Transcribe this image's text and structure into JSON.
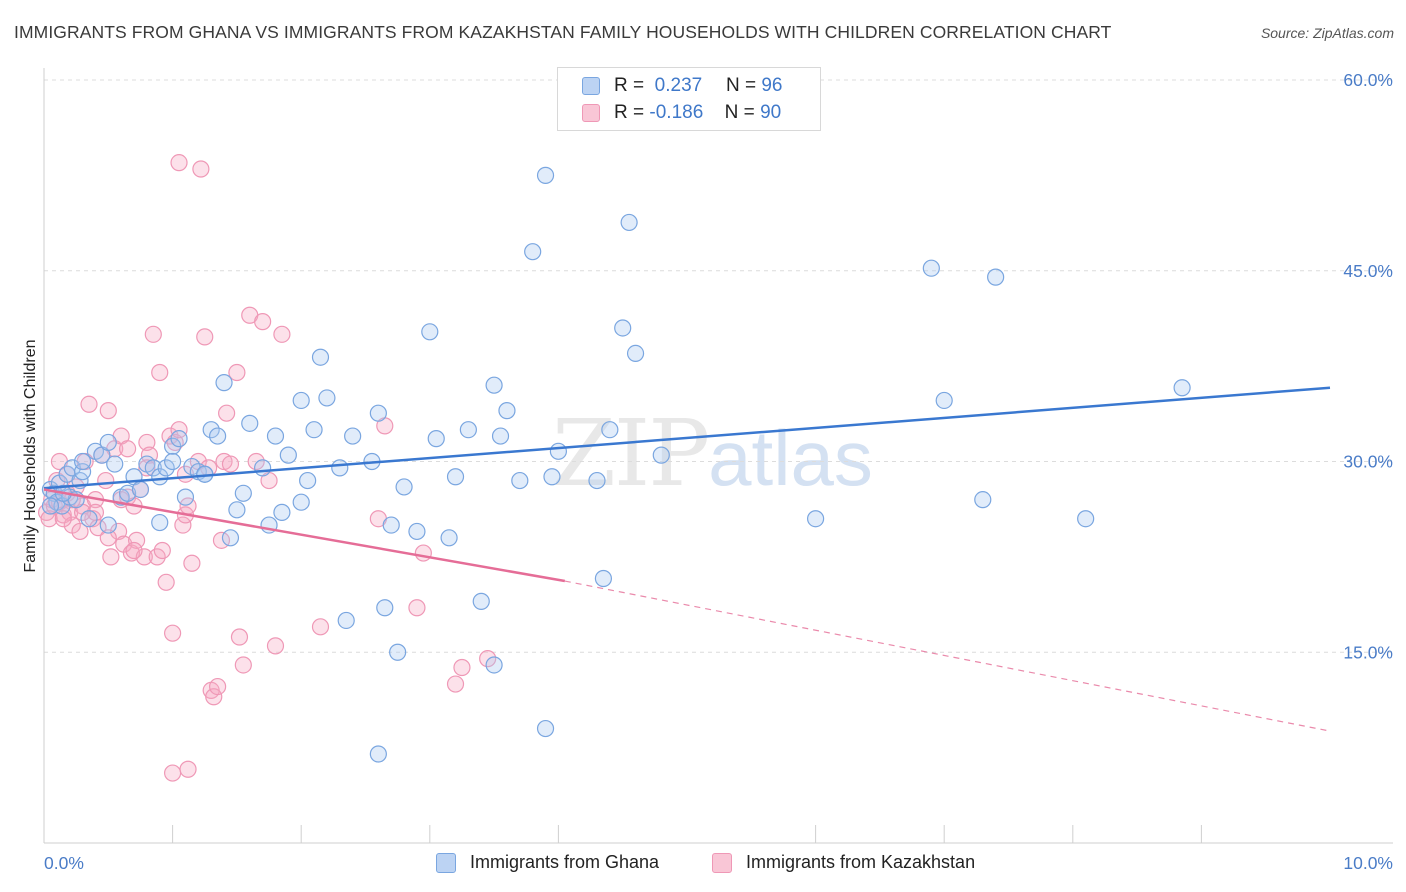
{
  "title": "IMMIGRANTS FROM GHANA VS IMMIGRANTS FROM KAZAKHSTAN FAMILY HOUSEHOLDS WITH CHILDREN CORRELATION CHART",
  "source": "Source: ZipAtlas.com",
  "watermark": {
    "zip": "ZIP",
    "atlas": "atlas"
  },
  "legend": {
    "rows": [
      {
        "r_label": "R =",
        "r_value": "0.237",
        "n_label": "N =",
        "n_value": "96"
      },
      {
        "r_label": "R =",
        "r_value": "-0.186",
        "n_label": "N =",
        "n_value": "90"
      }
    ]
  },
  "bottom_legend": {
    "ghana": "Immigrants from Ghana",
    "kazakhstan": "Immigrants from Kazakhstan"
  },
  "chart_data": {
    "type": "scatter",
    "title": "IMMIGRANTS FROM GHANA VS IMMIGRANTS FROM KAZAKHSTAN FAMILY HOUSEHOLDS WITH CHILDREN CORRELATION CHART",
    "xlabel": "",
    "ylabel": "Family Households with Children",
    "xlim": [
      0,
      10
    ],
    "ylim": [
      0,
      60
    ],
    "x_tick_labels": [
      "0.0%",
      "10.0%"
    ],
    "y_tick_labels": [
      "15.0%",
      "30.0%",
      "45.0%",
      "60.0%"
    ],
    "y_ticks": [
      15,
      30,
      45,
      60
    ],
    "grid": true,
    "legend_position": "top-center",
    "colors": {
      "ghana": "#6fa0e0",
      "ghana_line": "#3a78d0",
      "kazakhstan": "#f08fb0",
      "kazakhstan_line": "#e56d97"
    },
    "series": [
      {
        "name": "Immigrants from Ghana",
        "R": 0.237,
        "N": 96,
        "trend": {
          "x": [
            0.0,
            10.0
          ],
          "y": [
            27.9,
            35.8
          ]
        },
        "points": [
          [
            0.05,
            27.8
          ],
          [
            0.08,
            27.5
          ],
          [
            0.1,
            26.8
          ],
          [
            0.12,
            28.3
          ],
          [
            0.14,
            26.5
          ],
          [
            0.18,
            29.0
          ],
          [
            0.2,
            27.2
          ],
          [
            0.22,
            29.5
          ],
          [
            0.25,
            27.0
          ],
          [
            0.28,
            28.5
          ],
          [
            0.3,
            29.2
          ],
          [
            0.35,
            25.5
          ],
          [
            0.4,
            30.8
          ],
          [
            0.45,
            30.5
          ],
          [
            0.5,
            31.5
          ],
          [
            0.55,
            29.8
          ],
          [
            0.6,
            27.2
          ],
          [
            0.65,
            27.5
          ],
          [
            0.7,
            28.8
          ],
          [
            0.75,
            27.8
          ],
          [
            0.8,
            29.8
          ],
          [
            0.85,
            29.5
          ],
          [
            0.9,
            28.8
          ],
          [
            0.95,
            29.5
          ],
          [
            1.0,
            31.2
          ],
          [
            1.05,
            31.8
          ],
          [
            1.1,
            27.2
          ],
          [
            1.15,
            29.6
          ],
          [
            1.2,
            29.2
          ],
          [
            1.25,
            29.0
          ],
          [
            1.3,
            32.5
          ],
          [
            1.35,
            32.0
          ],
          [
            1.4,
            36.2
          ],
          [
            1.45,
            24.0
          ],
          [
            1.5,
            26.2
          ],
          [
            1.55,
            27.5
          ],
          [
            1.6,
            33.0
          ],
          [
            1.7,
            29.5
          ],
          [
            1.75,
            25.0
          ],
          [
            1.8,
            32.0
          ],
          [
            1.85,
            26.0
          ],
          [
            1.9,
            30.5
          ],
          [
            2.0,
            34.8
          ],
          [
            2.05,
            28.5
          ],
          [
            2.1,
            32.5
          ],
          [
            2.15,
            38.2
          ],
          [
            2.2,
            35.0
          ],
          [
            2.3,
            29.5
          ],
          [
            2.35,
            17.5
          ],
          [
            2.4,
            32.0
          ],
          [
            2.55,
            30.0
          ],
          [
            2.6,
            33.8
          ],
          [
            2.65,
            18.5
          ],
          [
            2.7,
            25.0
          ],
          [
            2.8,
            28.0
          ],
          [
            2.9,
            24.5
          ],
          [
            3.0,
            40.2
          ],
          [
            3.05,
            31.8
          ],
          [
            3.15,
            24.0
          ],
          [
            3.2,
            28.8
          ],
          [
            3.3,
            32.5
          ],
          [
            3.4,
            19.0
          ],
          [
            3.5,
            36.0
          ],
          [
            3.55,
            32.0
          ],
          [
            3.6,
            34.0
          ],
          [
            3.7,
            28.5
          ],
          [
            3.8,
            46.5
          ],
          [
            3.9,
            52.5
          ],
          [
            3.95,
            28.8
          ],
          [
            4.0,
            30.8
          ],
          [
            4.3,
            28.5
          ],
          [
            4.35,
            20.8
          ],
          [
            4.4,
            32.5
          ],
          [
            4.5,
            40.5
          ],
          [
            4.55,
            48.8
          ],
          [
            4.6,
            38.5
          ],
          [
            4.8,
            30.5
          ],
          [
            6.0,
            25.5
          ],
          [
            6.9,
            45.2
          ],
          [
            7.0,
            34.8
          ],
          [
            7.3,
            27.0
          ],
          [
            7.4,
            44.5
          ],
          [
            8.1,
            25.5
          ],
          [
            8.85,
            35.8
          ],
          [
            0.3,
            30.0
          ],
          [
            0.5,
            25.0
          ],
          [
            0.9,
            25.2
          ],
          [
            1.25,
            29.0
          ],
          [
            2.0,
            26.8
          ],
          [
            2.75,
            15.0
          ],
          [
            2.6,
            7.0
          ],
          [
            3.5,
            14.0
          ],
          [
            3.9,
            9.0
          ],
          [
            0.15,
            27.5
          ],
          [
            0.05,
            26.5
          ],
          [
            1.0,
            30.0
          ]
        ]
      },
      {
        "name": "Immigrants from Kazakhstan",
        "R": -0.186,
        "N": 90,
        "trend": {
          "x": [
            0.0,
            4.05
          ],
          "y": [
            27.8,
            20.6
          ]
        },
        "trend_extended": {
          "x": [
            4.05,
            10.0
          ],
          "y": [
            20.6,
            8.8
          ]
        },
        "points": [
          [
            0.02,
            26.0
          ],
          [
            0.04,
            25.5
          ],
          [
            0.06,
            27.0
          ],
          [
            0.08,
            26.5
          ],
          [
            0.1,
            28.5
          ],
          [
            0.12,
            26.8
          ],
          [
            0.15,
            25.8
          ],
          [
            0.18,
            27.5
          ],
          [
            0.2,
            26.0
          ],
          [
            0.22,
            25.0
          ],
          [
            0.25,
            28.0
          ],
          [
            0.28,
            24.5
          ],
          [
            0.3,
            26.5
          ],
          [
            0.32,
            30.0
          ],
          [
            0.35,
            34.5
          ],
          [
            0.38,
            25.5
          ],
          [
            0.4,
            27.0
          ],
          [
            0.42,
            24.8
          ],
          [
            0.45,
            30.5
          ],
          [
            0.48,
            28.5
          ],
          [
            0.5,
            34.0
          ],
          [
            0.52,
            22.5
          ],
          [
            0.55,
            31.0
          ],
          [
            0.58,
            24.5
          ],
          [
            0.6,
            32.0
          ],
          [
            0.62,
            23.5
          ],
          [
            0.65,
            27.2
          ],
          [
            0.68,
            22.8
          ],
          [
            0.7,
            26.5
          ],
          [
            0.72,
            23.8
          ],
          [
            0.75,
            27.8
          ],
          [
            0.78,
            22.5
          ],
          [
            0.8,
            31.5
          ],
          [
            0.82,
            30.5
          ],
          [
            0.85,
            40.0
          ],
          [
            0.88,
            22.5
          ],
          [
            0.9,
            37.0
          ],
          [
            0.92,
            23.0
          ],
          [
            0.95,
            20.5
          ],
          [
            0.98,
            32.0
          ],
          [
            1.0,
            16.5
          ],
          [
            1.02,
            31.5
          ],
          [
            1.05,
            32.5
          ],
          [
            1.08,
            25.0
          ],
          [
            1.1,
            25.8
          ],
          [
            1.05,
            53.5
          ],
          [
            1.1,
            29.0
          ],
          [
            1.12,
            26.5
          ],
          [
            1.15,
            22.0
          ],
          [
            1.2,
            30.0
          ],
          [
            1.22,
            53.0
          ],
          [
            1.25,
            39.8
          ],
          [
            1.28,
            29.5
          ],
          [
            1.3,
            12.0
          ],
          [
            1.32,
            11.5
          ],
          [
            1.35,
            12.3
          ],
          [
            1.38,
            23.8
          ],
          [
            1.4,
            30.0
          ],
          [
            1.42,
            33.8
          ],
          [
            1.45,
            29.8
          ],
          [
            1.5,
            37.0
          ],
          [
            1.52,
            16.2
          ],
          [
            1.55,
            14.0
          ],
          [
            1.6,
            41.5
          ],
          [
            1.65,
            30.0
          ],
          [
            1.7,
            41.0
          ],
          [
            1.75,
            28.5
          ],
          [
            1.8,
            15.5
          ],
          [
            1.85,
            40.0
          ],
          [
            2.15,
            17.0
          ],
          [
            2.6,
            25.5
          ],
          [
            2.65,
            32.8
          ],
          [
            2.9,
            18.5
          ],
          [
            2.95,
            22.8
          ],
          [
            3.2,
            12.5
          ],
          [
            3.25,
            13.8
          ],
          [
            3.45,
            14.5
          ],
          [
            1.0,
            5.5
          ],
          [
            1.12,
            5.8
          ],
          [
            0.12,
            30.0
          ],
          [
            0.18,
            29.0
          ],
          [
            0.4,
            26.0
          ],
          [
            0.6,
            27.0
          ],
          [
            0.7,
            23.0
          ],
          [
            0.3,
            26.0
          ],
          [
            0.22,
            27.0
          ],
          [
            0.5,
            24.0
          ],
          [
            0.15,
            25.5
          ],
          [
            0.65,
            31.0
          ],
          [
            0.8,
            29.5
          ]
        ]
      }
    ]
  }
}
